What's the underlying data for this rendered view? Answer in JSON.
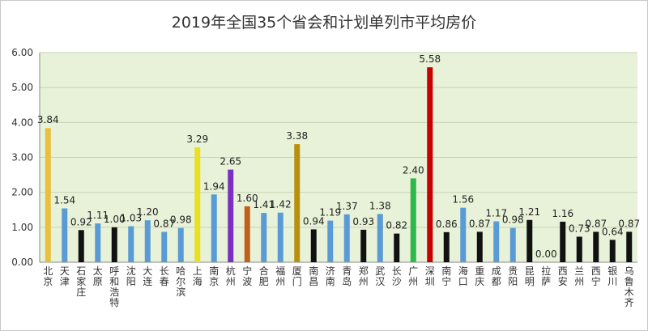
{
  "chart_data": {
    "type": "bar",
    "title": "2019年全国35个省会和计划单列市平均房价",
    "xlabel": "",
    "ylabel": "",
    "ylim": [
      0,
      6
    ],
    "yticks": [
      "0.00",
      "1.00",
      "2.00",
      "3.00",
      "4.00",
      "5.00",
      "6.00"
    ],
    "grid": true,
    "legend": "none",
    "plot_background": "#e8f2d8",
    "categories": [
      "北京",
      "天津",
      "石家庄",
      "太原",
      "呼和浩特",
      "沈阳",
      "大连",
      "长春",
      "哈尔滨",
      "上海",
      "南京",
      "杭州",
      "宁波",
      "合肥",
      "福州",
      "厦门",
      "南昌",
      "济南",
      "青岛",
      "郑州",
      "武汉",
      "长沙",
      "广州",
      "深圳",
      "南宁",
      "海口",
      "重庆",
      "成都",
      "贵阳",
      "昆明",
      "拉萨",
      "西安",
      "兰州",
      "西宁",
      "银川",
      "乌鲁木齐"
    ],
    "values": [
      3.84,
      1.54,
      0.92,
      1.11,
      1.0,
      1.03,
      1.2,
      0.87,
      0.98,
      3.29,
      1.94,
      2.65,
      1.6,
      1.41,
      1.42,
      3.38,
      0.94,
      1.19,
      1.37,
      0.93,
      1.38,
      0.82,
      2.4,
      5.58,
      0.86,
      1.56,
      0.87,
      1.17,
      0.98,
      1.21,
      0.0,
      1.16,
      0.73,
      0.87,
      0.64,
      0.87
    ],
    "value_labels": [
      "3.84",
      "1.54",
      "0.92",
      "1.11",
      "1.00",
      "1.03",
      "1.20",
      "0.87",
      "0.98",
      "3.29",
      "1.94",
      "2.65",
      "1.60",
      "1.41",
      "1.42",
      "3.38",
      "0.94",
      "1.19",
      "1.37",
      "0.93",
      "1.38",
      "0.82",
      "2.40",
      "5.58",
      "0.86",
      "1.56",
      "0.87",
      "1.17",
      "0.98",
      "1.21",
      "0.00",
      "1.16",
      "0.73",
      "0.87",
      "0.64",
      "0.87"
    ],
    "bar_colors": [
      "#e8c040",
      "#5b9bd5",
      "#111111",
      "#5b9bd5",
      "#111111",
      "#5b9bd5",
      "#5b9bd5",
      "#5b9bd5",
      "#5b9bd5",
      "#e8e020",
      "#5b9bd5",
      "#7a30c0",
      "#c0601a",
      "#5b9bd5",
      "#5b9bd5",
      "#b8900e",
      "#111111",
      "#5b9bd5",
      "#5b9bd5",
      "#111111",
      "#5b9bd5",
      "#111111",
      "#2cb84a",
      "#c80000",
      "#111111",
      "#5b9bd5",
      "#111111",
      "#5b9bd5",
      "#5b9bd5",
      "#111111",
      "#111111",
      "#111111",
      "#111111",
      "#111111",
      "#111111",
      "#111111"
    ]
  }
}
